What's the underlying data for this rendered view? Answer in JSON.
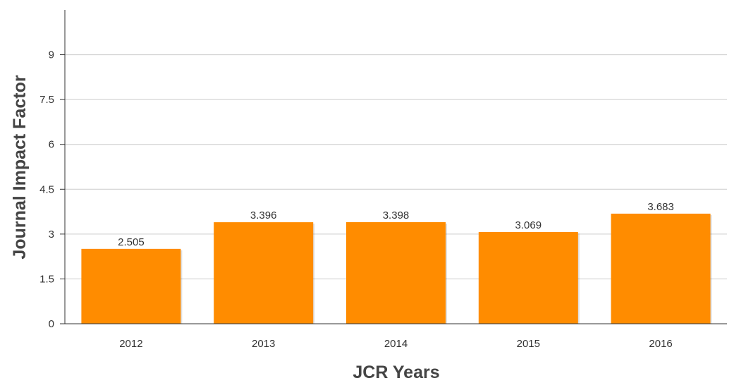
{
  "chart_data": {
    "type": "bar",
    "title": "",
    "xlabel": "JCR Years",
    "ylabel": "Journal Impact Factor",
    "categories": [
      "2012",
      "2013",
      "2014",
      "2015",
      "2016"
    ],
    "values": [
      2.505,
      3.396,
      3.398,
      3.069,
      3.683
    ],
    "value_labels": [
      "2.505",
      "3.396",
      "3.398",
      "3.069",
      "3.683"
    ],
    "yticks": [
      0,
      1.5,
      3,
      4.5,
      6,
      7.5,
      9
    ],
    "ytick_labels": [
      "0",
      "1.5",
      "3",
      "4.5",
      "6",
      "7.5",
      "9"
    ],
    "ylim": [
      0,
      10.5
    ],
    "grid": true,
    "legend": "none",
    "bar_color": "#ff8c00",
    "grid_color": "#cccccc",
    "axis_color": "#333333"
  }
}
